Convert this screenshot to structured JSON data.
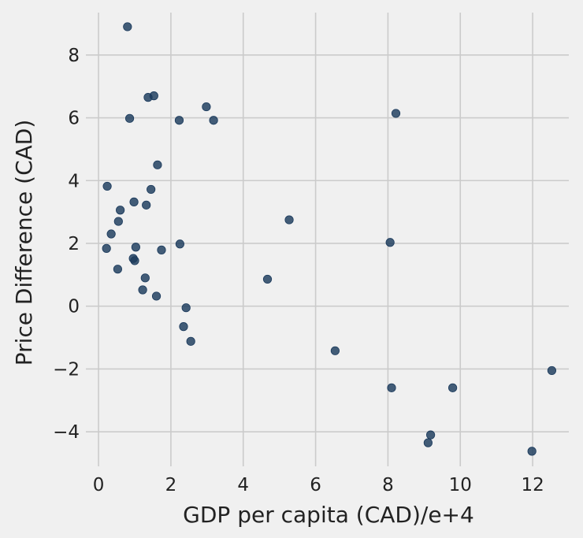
{
  "chart_data": {
    "type": "scatter",
    "xlabel": "GDP per capita (CAD)/e+4",
    "ylabel": "Price Difference (CAD)",
    "xlim": [
      -0.35,
      13.0
    ],
    "ylim": [
      -5.1,
      9.35
    ],
    "x_ticks": [
      0,
      2,
      4,
      6,
      8,
      10,
      12
    ],
    "y_ticks": [
      -4,
      -2,
      0,
      2,
      4,
      6,
      8
    ],
    "x_tick_labels": [
      "0",
      "2",
      "4",
      "6",
      "8",
      "10",
      "12"
    ],
    "y_tick_labels": [
      "−4",
      "−2",
      "0",
      "2",
      "4",
      "6",
      "8"
    ],
    "grid": true,
    "point_color": "#1b3a5c",
    "background_color": "#f0f0f0",
    "grid_color": "#cbcbcb",
    "points": [
      {
        "x": 0.8,
        "y": 8.9
      },
      {
        "x": 1.37,
        "y": 6.65
      },
      {
        "x": 1.53,
        "y": 6.7
      },
      {
        "x": 0.86,
        "y": 5.98
      },
      {
        "x": 2.23,
        "y": 5.92
      },
      {
        "x": 2.98,
        "y": 6.35
      },
      {
        "x": 3.18,
        "y": 5.92
      },
      {
        "x": 8.22,
        "y": 6.14
      },
      {
        "x": 1.63,
        "y": 4.5
      },
      {
        "x": 0.24,
        "y": 3.82
      },
      {
        "x": 1.45,
        "y": 3.72
      },
      {
        "x": 0.98,
        "y": 3.32
      },
      {
        "x": 1.32,
        "y": 3.22
      },
      {
        "x": 0.6,
        "y": 3.06
      },
      {
        "x": 0.55,
        "y": 2.7
      },
      {
        "x": 5.27,
        "y": 2.75
      },
      {
        "x": 0.35,
        "y": 2.3
      },
      {
        "x": 8.06,
        "y": 2.03
      },
      {
        "x": 2.25,
        "y": 1.98
      },
      {
        "x": 0.22,
        "y": 1.84
      },
      {
        "x": 1.03,
        "y": 1.88
      },
      {
        "x": 1.74,
        "y": 1.79
      },
      {
        "x": 0.96,
        "y": 1.52
      },
      {
        "x": 1.0,
        "y": 1.45
      },
      {
        "x": 0.53,
        "y": 1.18
      },
      {
        "x": 1.29,
        "y": 0.9
      },
      {
        "x": 4.67,
        "y": 0.86
      },
      {
        "x": 1.22,
        "y": 0.52
      },
      {
        "x": 1.6,
        "y": 0.32
      },
      {
        "x": 2.42,
        "y": -0.05
      },
      {
        "x": 2.35,
        "y": -0.65
      },
      {
        "x": 2.55,
        "y": -1.12
      },
      {
        "x": 6.54,
        "y": -1.42
      },
      {
        "x": 8.1,
        "y": -2.6
      },
      {
        "x": 9.79,
        "y": -2.6
      },
      {
        "x": 12.53,
        "y": -2.05
      },
      {
        "x": 9.18,
        "y": -4.1
      },
      {
        "x": 9.11,
        "y": -4.35
      },
      {
        "x": 11.98,
        "y": -4.62
      }
    ]
  }
}
